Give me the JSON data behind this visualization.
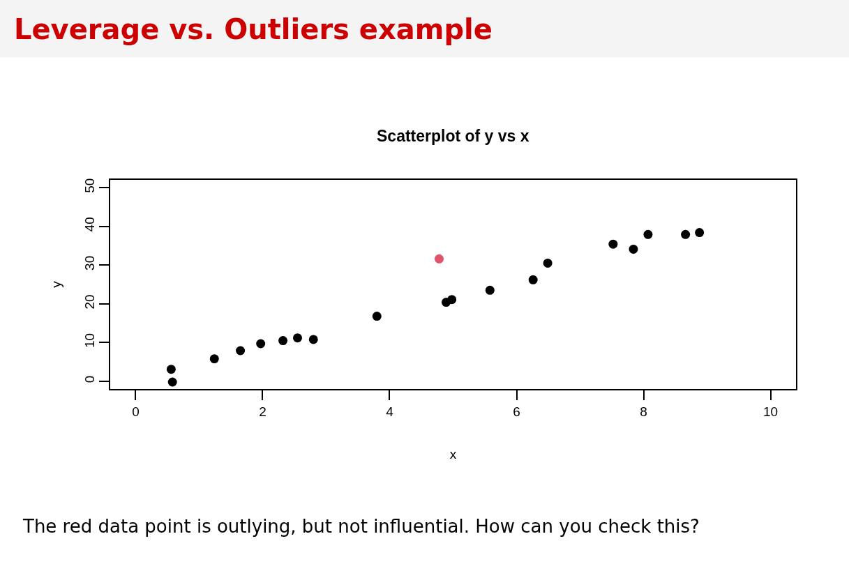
{
  "chart_data": {
    "type": "scatter",
    "title": "Leverage vs. Outliers example",
    "subtitle": "Scatterplot of y vs x",
    "xlabel": "x",
    "ylabel": "y",
    "annotations": [
      "The red data point is outlying, but not influential. How can you check this?"
    ],
    "series": [
      {
        "color": "#000000",
        "x": [
          0.56,
          0.58,
          1.24,
          1.65,
          1.97,
          2.32,
          2.55,
          2.8,
          3.8,
          4.89,
          4.98,
          5.58,
          6.26,
          6.49,
          7.52,
          7.84,
          8.07,
          8.66,
          8.88
        ],
        "values": [
          3.1,
          -0.2,
          5.8,
          7.9,
          9.7,
          10.5,
          11.2,
          10.8,
          16.8,
          20.4,
          21.1,
          23.5,
          26.2,
          30.5,
          35.4,
          34.1,
          37.9,
          37.9,
          38.4
        ]
      },
      {
        "color": "#df536b",
        "x": [
          4.78
        ],
        "values": [
          31.6
        ]
      }
    ],
    "marker": "circle",
    "xlim": [
      -0.4,
      10.4
    ],
    "xticks": [
      0,
      2,
      4,
      6,
      8,
      10
    ],
    "ylim": [
      -2,
      52
    ],
    "yticks": [
      0,
      10,
      20,
      30,
      40,
      50
    ]
  }
}
